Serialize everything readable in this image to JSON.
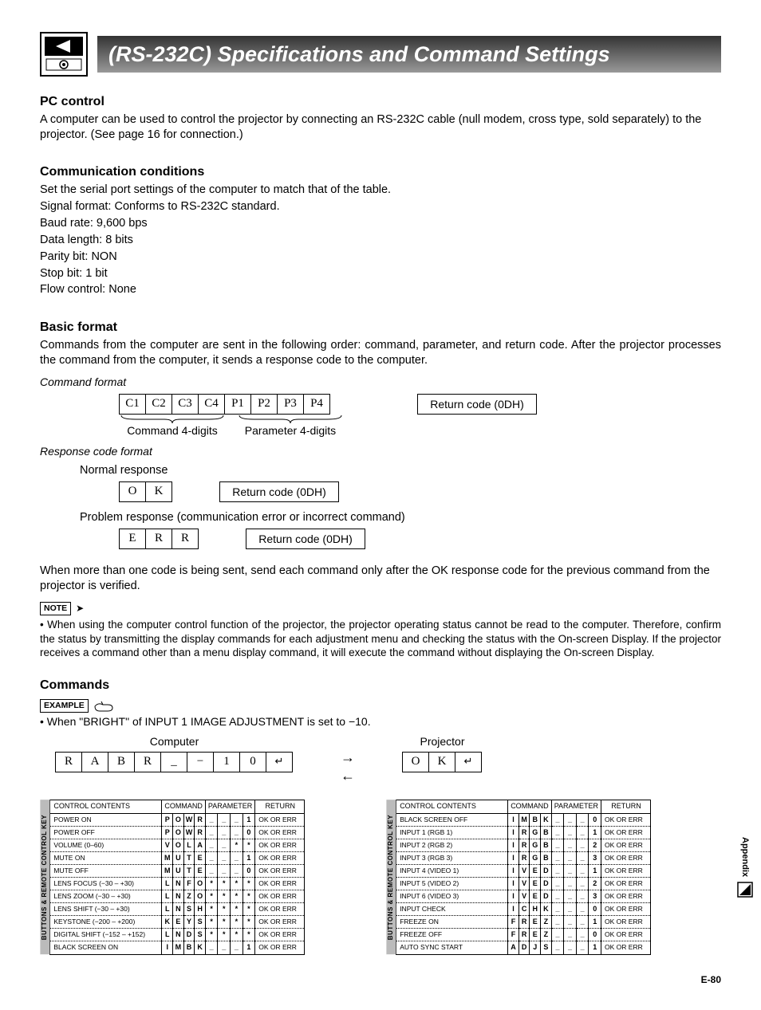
{
  "title": "(RS-232C) Specifications and Command Settings",
  "pc_control": {
    "heading": "PC control",
    "text": "A computer can be used to control the projector by connecting an RS-232C cable (null modem, cross type, sold separately) to the projector. (See page 16 for connection.)"
  },
  "comm_cond": {
    "heading": "Communication conditions",
    "lines": [
      "Set the serial port settings of the computer to match that of the table.",
      "Signal format: Conforms to RS-232C standard.",
      "Baud rate: 9,600 bps",
      "Data length: 8 bits",
      "Parity bit: NON",
      "Stop bit: 1 bit",
      "Flow control: None"
    ]
  },
  "basic_format": {
    "heading": "Basic format",
    "text": "Commands from the computer are sent in the following order: command, parameter, and return code. After the projector processes the command from the computer, it sends a response code to the computer.",
    "command_format_label": "Command format",
    "cmd_cells": [
      "C1",
      "C2",
      "C3",
      "C4",
      "P1",
      "P2",
      "P3",
      "P4"
    ],
    "cmd_brace_left": "Command 4-digits",
    "cmd_brace_right": "Parameter 4-digits",
    "return_code_label": "Return code (0DH)",
    "response_label": "Response code format",
    "normal_label": "Normal response",
    "ok_cells": [
      "O",
      "K"
    ],
    "problem_label": "Problem response (communication error or incorrect command)",
    "err_cells": [
      "E",
      "R",
      "R"
    ],
    "after_text": "When more than one code is being sent, send each command only after the OK response code for the previous command from the projector is verified."
  },
  "note": {
    "label": "NOTE",
    "bullet": "• When using the computer control function of the projector, the projector operating status cannot be read to the computer. Therefore, confirm the status by transmitting the display commands for each adjustment menu and checking the status with the On-screen Display. If the projector receives a command other than a menu display command, it will execute the command without displaying the On-screen Display."
  },
  "commands": {
    "heading": "Commands",
    "example_label": "EXAMPLE",
    "example_bullet": "• When \"BRIGHT\" of INPUT 1 IMAGE ADJUSTMENT is set to −10.",
    "computer_label": "Computer",
    "projector_label": "Projector",
    "example_computer": [
      "R",
      "A",
      "B",
      "R",
      "_",
      "−",
      "1",
      "0",
      "↵"
    ],
    "example_projector": [
      "O",
      "K",
      "↵"
    ]
  },
  "tables": {
    "headers": {
      "cc": "CONTROL CONTENTS",
      "cmd": "COMMAND",
      "param": "PARAMETER",
      "ret": "RETURN"
    },
    "side_label": "BUTTONS & REMOTE CONTROL KEY",
    "left": [
      {
        "cc": "POWER ON",
        "cmd": [
          "P",
          "O",
          "W",
          "R"
        ],
        "param": [
          "_",
          "_",
          "_",
          "1"
        ],
        "ret": "OK OR ERR"
      },
      {
        "cc": "POWER OFF",
        "cmd": [
          "P",
          "O",
          "W",
          "R"
        ],
        "param": [
          "_",
          "_",
          "_",
          "0"
        ],
        "ret": "OK OR ERR"
      },
      {
        "cc": "VOLUME (0–60)",
        "cmd": [
          "V",
          "O",
          "L",
          "A"
        ],
        "param": [
          "_",
          "_",
          "*",
          "*"
        ],
        "ret": "OK OR ERR"
      },
      {
        "cc": "MUTE ON",
        "cmd": [
          "M",
          "U",
          "T",
          "E"
        ],
        "param": [
          "_",
          "_",
          "_",
          "1"
        ],
        "ret": "OK OR ERR"
      },
      {
        "cc": "MUTE OFF",
        "cmd": [
          "M",
          "U",
          "T",
          "E"
        ],
        "param": [
          "_",
          "_",
          "_",
          "0"
        ],
        "ret": "OK OR ERR"
      },
      {
        "cc": "LENS FOCUS (−30 – +30)",
        "cmd": [
          "L",
          "N",
          "F",
          "O"
        ],
        "param": [
          "*",
          "*",
          "*",
          "*"
        ],
        "ret": "OK OR ERR"
      },
      {
        "cc": "LENS ZOOM (−30 – +30)",
        "cmd": [
          "L",
          "N",
          "Z",
          "O"
        ],
        "param": [
          "*",
          "*",
          "*",
          "*"
        ],
        "ret": "OK OR ERR"
      },
      {
        "cc": "LENS SHIFT (−30 – +30)",
        "cmd": [
          "L",
          "N",
          "S",
          "H"
        ],
        "param": [
          "*",
          "*",
          "*",
          "*"
        ],
        "ret": "OK OR ERR"
      },
      {
        "cc": "KEYSTONE (−200 – +200)",
        "cmd": [
          "K",
          "E",
          "Y",
          "S"
        ],
        "param": [
          "*",
          "*",
          "*",
          "*"
        ],
        "ret": "OK OR ERR"
      },
      {
        "cc": "DIGITAL SHIFT (−152 – +152)",
        "cmd": [
          "L",
          "N",
          "D",
          "S"
        ],
        "param": [
          "*",
          "*",
          "*",
          "*"
        ],
        "ret": "OK OR ERR"
      },
      {
        "cc": "BLACK SCREEN ON",
        "cmd": [
          "I",
          "M",
          "B",
          "K"
        ],
        "param": [
          "_",
          "_",
          "_",
          "1"
        ],
        "ret": "OK OR ERR"
      }
    ],
    "right": [
      {
        "cc": "BLACK SCREEN OFF",
        "cmd": [
          "I",
          "M",
          "B",
          "K"
        ],
        "param": [
          "_",
          "_",
          "_",
          "0"
        ],
        "ret": "OK OR ERR"
      },
      {
        "cc": "INPUT 1 (RGB 1)",
        "cmd": [
          "I",
          "R",
          "G",
          "B"
        ],
        "param": [
          "_",
          "_",
          "_",
          "1"
        ],
        "ret": "OK OR ERR"
      },
      {
        "cc": "INPUT 2 (RGB 2)",
        "cmd": [
          "I",
          "R",
          "G",
          "B"
        ],
        "param": [
          "_",
          "_",
          "_",
          "2"
        ],
        "ret": "OK OR ERR"
      },
      {
        "cc": "INPUT 3 (RGB 3)",
        "cmd": [
          "I",
          "R",
          "G",
          "B"
        ],
        "param": [
          "_",
          "_",
          "_",
          "3"
        ],
        "ret": "OK OR ERR"
      },
      {
        "cc": "INPUT 4 (VIDEO 1)",
        "cmd": [
          "I",
          "V",
          "E",
          "D"
        ],
        "param": [
          "_",
          "_",
          "_",
          "1"
        ],
        "ret": "OK OR ERR"
      },
      {
        "cc": "INPUT 5 (VIDEO 2)",
        "cmd": [
          "I",
          "V",
          "E",
          "D"
        ],
        "param": [
          "_",
          "_",
          "_",
          "2"
        ],
        "ret": "OK OR ERR"
      },
      {
        "cc": "INPUT 6 (VIDEO 3)",
        "cmd": [
          "I",
          "V",
          "E",
          "D"
        ],
        "param": [
          "_",
          "_",
          "_",
          "3"
        ],
        "ret": "OK OR ERR"
      },
      {
        "cc": "INPUT CHECK",
        "cmd": [
          "I",
          "C",
          "H",
          "K"
        ],
        "param": [
          "_",
          "_",
          "_",
          "0"
        ],
        "ret": "OK OR ERR"
      },
      {
        "cc": "FREEZE ON",
        "cmd": [
          "F",
          "R",
          "E",
          "Z"
        ],
        "param": [
          "_",
          "_",
          "_",
          "1"
        ],
        "ret": "OK OR ERR"
      },
      {
        "cc": "FREEZE OFF",
        "cmd": [
          "F",
          "R",
          "E",
          "Z"
        ],
        "param": [
          "_",
          "_",
          "_",
          "0"
        ],
        "ret": "OK OR ERR"
      },
      {
        "cc": "AUTO SYNC START",
        "cmd": [
          "A",
          "D",
          "J",
          "S"
        ],
        "param": [
          "_",
          "_",
          "_",
          "1"
        ],
        "ret": "OK OR ERR"
      }
    ]
  },
  "footer": {
    "page": "E-80",
    "appendix": "Appendix"
  }
}
